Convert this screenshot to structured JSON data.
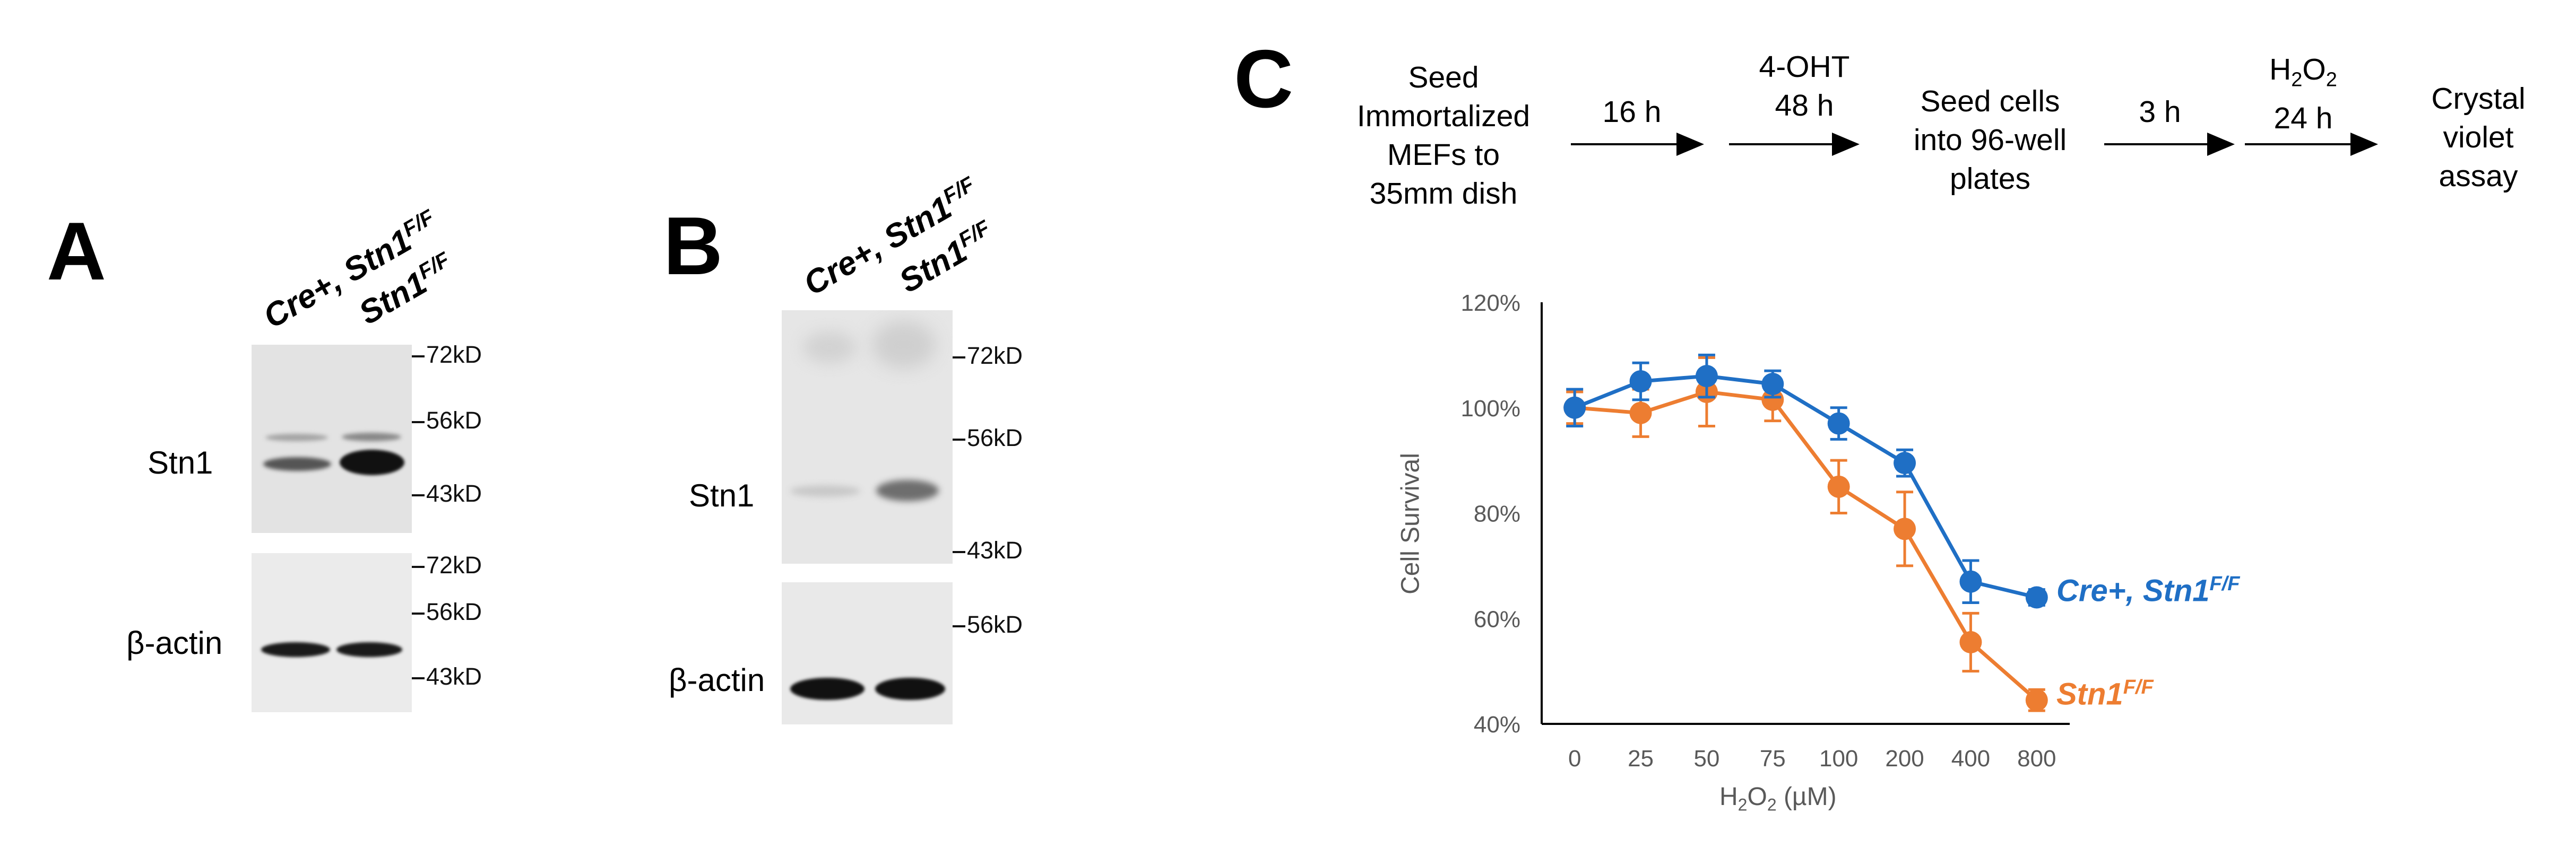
{
  "panel_a": {
    "letter": "A",
    "lanes": [
      {
        "label": "Cre+, Stn1",
        "sup": "F/F"
      },
      {
        "label": "Stn1",
        "sup": "F/F"
      }
    ],
    "top_blot": {
      "protein": "Stn1",
      "markers": [
        "72kD",
        "56kD",
        "43kD"
      ]
    },
    "bottom_blot": {
      "protein": "β-actin",
      "markers": [
        "72kD",
        "56kD",
        "43kD"
      ]
    }
  },
  "panel_b": {
    "letter": "B",
    "lanes": [
      {
        "label": "Cre+, Stn1",
        "sup": "F/F"
      },
      {
        "label": "Stn1",
        "sup": "F/F"
      }
    ],
    "top_blot": {
      "protein": "Stn1",
      "markers": [
        "72kD",
        "56kD",
        "43kD"
      ]
    },
    "bottom_blot": {
      "protein": "β-actin",
      "markers": [
        "56kD"
      ]
    }
  },
  "panel_c": {
    "letter": "C",
    "workflow": {
      "step1": [
        "Seed",
        "Immortalized",
        "MEFs to",
        "35mm dish"
      ],
      "arrow1": "16 h",
      "step2": [
        "4-OHT",
        "48 h"
      ],
      "step3": [
        "Seed cells",
        "into 96-well",
        "plates"
      ],
      "arrow3": "3 h",
      "step4_main": "H",
      "step4_sub": "2",
      "step4_o": "O",
      "step4_sub2": "2",
      "step4_time": "24 h",
      "step5": [
        "Crystal",
        "violet",
        "assay"
      ]
    }
  },
  "chart_data": {
    "type": "line",
    "ylabel": "Cell Survival",
    "xlabel_main": "H",
    "xlabel_sub1": "2",
    "xlabel_o": "O",
    "xlabel_sub2": "2",
    "xlabel_unit": " (µM)",
    "categories": [
      "0",
      "25",
      "50",
      "75",
      "100",
      "200",
      "400",
      "800"
    ],
    "yticks": [
      "40%",
      "60%",
      "80%",
      "100%",
      "120%"
    ],
    "ylim": [
      40,
      120
    ],
    "grid": false,
    "series": [
      {
        "name": "Cre+, Stn1",
        "name_sup": "F/F",
        "color": "#1f6fc5",
        "values": [
          100,
          105,
          106,
          104.5,
          97,
          89.5,
          67,
          64
        ],
        "errors": [
          3.5,
          3.5,
          4,
          2.5,
          3,
          2.5,
          4,
          1.5
        ]
      },
      {
        "name": "Stn1",
        "name_sup": "F/F",
        "color": "#ed7d31",
        "values": [
          100,
          99,
          103,
          101.5,
          85,
          77,
          55.5,
          44.5
        ],
        "errors": [
          3,
          4.5,
          6.5,
          4,
          5,
          7,
          5.5,
          2
        ]
      }
    ]
  }
}
